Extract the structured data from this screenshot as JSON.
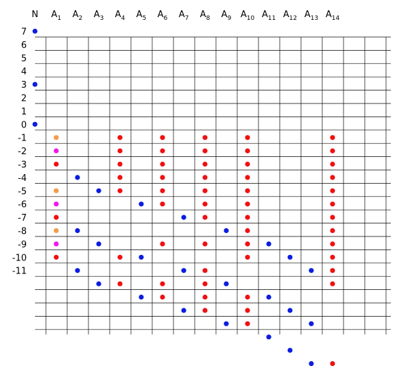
{
  "header": "N",
  "columns": [
    {
      "base": "A",
      "sub": "1"
    },
    {
      "base": "A",
      "sub": "2"
    },
    {
      "base": "A",
      "sub": "3"
    },
    {
      "base": "A",
      "sub": "4"
    },
    {
      "base": "A",
      "sub": "5"
    },
    {
      "base": "A",
      "sub": "6"
    },
    {
      "base": "A",
      "sub": "7"
    },
    {
      "base": "A",
      "sub": "8"
    },
    {
      "base": "A",
      "sub": "9"
    },
    {
      "base": "A",
      "sub": "10"
    },
    {
      "base": "A",
      "sub": "11"
    },
    {
      "base": "A",
      "sub": "12"
    },
    {
      "base": "A",
      "sub": "13"
    },
    {
      "base": "A",
      "sub": "14"
    }
  ],
  "row_labels": [
    "7",
    "6",
    "5",
    "4",
    "3",
    "2",
    "1",
    "0",
    "-1",
    "-2",
    "-3",
    "-4",
    "-5",
    "-6",
    "-7",
    "-8",
    "-9",
    "-10",
    "-11"
  ],
  "colors": {
    "blue": "#0b1de0",
    "red": "#f01010",
    "orange": "#f59a4a",
    "magenta": "#f018ee"
  },
  "dots": [
    {
      "col": 0,
      "row": 7,
      "color": "blue"
    },
    {
      "col": 0,
      "row": 3,
      "color": "blue"
    },
    {
      "col": 0,
      "row": 0,
      "color": "blue"
    },
    {
      "col": 1,
      "row": -1,
      "color": "orange"
    },
    {
      "col": 1,
      "row": -2,
      "color": "magenta"
    },
    {
      "col": 1,
      "row": -3,
      "color": "red"
    },
    {
      "col": 1,
      "row": -5,
      "color": "orange"
    },
    {
      "col": 1,
      "row": -6,
      "color": "magenta"
    },
    {
      "col": 1,
      "row": -7,
      "color": "red"
    },
    {
      "col": 1,
      "row": -8,
      "color": "orange"
    },
    {
      "col": 1,
      "row": -9,
      "color": "magenta"
    },
    {
      "col": 1,
      "row": -10,
      "color": "red"
    },
    {
      "col": 2,
      "row": -4,
      "color": "blue"
    },
    {
      "col": 2,
      "row": -8,
      "color": "blue"
    },
    {
      "col": 2,
      "row": -11,
      "color": "blue"
    },
    {
      "col": 3,
      "row": -5,
      "color": "blue"
    },
    {
      "col": 3,
      "row": -9,
      "color": "blue"
    },
    {
      "col": 3,
      "row": -12,
      "color": "blue"
    },
    {
      "col": 4,
      "row": -1,
      "color": "red"
    },
    {
      "col": 4,
      "row": -2,
      "color": "red"
    },
    {
      "col": 4,
      "row": -3,
      "color": "red"
    },
    {
      "col": 4,
      "row": -4,
      "color": "red"
    },
    {
      "col": 4,
      "row": -5,
      "color": "red"
    },
    {
      "col": 4,
      "row": -10,
      "color": "red"
    },
    {
      "col": 4,
      "row": -12,
      "color": "red"
    },
    {
      "col": 5,
      "row": -6,
      "color": "blue"
    },
    {
      "col": 5,
      "row": -10,
      "color": "blue"
    },
    {
      "col": 5,
      "row": -13,
      "color": "blue"
    },
    {
      "col": 6,
      "row": -1,
      "color": "red"
    },
    {
      "col": 6,
      "row": -2,
      "color": "red"
    },
    {
      "col": 6,
      "row": -3,
      "color": "red"
    },
    {
      "col": 6,
      "row": -4,
      "color": "red"
    },
    {
      "col": 6,
      "row": -5,
      "color": "red"
    },
    {
      "col": 6,
      "row": -6,
      "color": "red"
    },
    {
      "col": 6,
      "row": -9,
      "color": "red"
    },
    {
      "col": 6,
      "row": -12,
      "color": "red"
    },
    {
      "col": 6,
      "row": -13,
      "color": "red"
    },
    {
      "col": 7,
      "row": -7,
      "color": "blue"
    },
    {
      "col": 7,
      "row": -11,
      "color": "blue"
    },
    {
      "col": 7,
      "row": -14,
      "color": "blue"
    },
    {
      "col": 8,
      "row": -1,
      "color": "red"
    },
    {
      "col": 8,
      "row": -2,
      "color": "red"
    },
    {
      "col": 8,
      "row": -3,
      "color": "red"
    },
    {
      "col": 8,
      "row": -4,
      "color": "red"
    },
    {
      "col": 8,
      "row": -5,
      "color": "red"
    },
    {
      "col": 8,
      "row": -6,
      "color": "red"
    },
    {
      "col": 8,
      "row": -7,
      "color": "red"
    },
    {
      "col": 8,
      "row": -9,
      "color": "red"
    },
    {
      "col": 8,
      "row": -11,
      "color": "red"
    },
    {
      "col": 8,
      "row": -12,
      "color": "red"
    },
    {
      "col": 8,
      "row": -13,
      "color": "red"
    },
    {
      "col": 8,
      "row": -14,
      "color": "red"
    },
    {
      "col": 9,
      "row": -8,
      "color": "blue"
    },
    {
      "col": 9,
      "row": -12,
      "color": "blue"
    },
    {
      "col": 9,
      "row": -15,
      "color": "blue"
    },
    {
      "col": 10,
      "row": -1,
      "color": "red"
    },
    {
      "col": 10,
      "row": -2,
      "color": "red"
    },
    {
      "col": 10,
      "row": -3,
      "color": "red"
    },
    {
      "col": 10,
      "row": -4,
      "color": "red"
    },
    {
      "col": 10,
      "row": -5,
      "color": "red"
    },
    {
      "col": 10,
      "row": -6,
      "color": "red"
    },
    {
      "col": 10,
      "row": -7,
      "color": "red"
    },
    {
      "col": 10,
      "row": -8,
      "color": "red"
    },
    {
      "col": 10,
      "row": -9,
      "color": "red"
    },
    {
      "col": 10,
      "row": -10,
      "color": "red"
    },
    {
      "col": 10,
      "row": -13,
      "color": "red"
    },
    {
      "col": 10,
      "row": -14,
      "color": "red"
    },
    {
      "col": 10,
      "row": -15,
      "color": "red"
    },
    {
      "col": 11,
      "row": -9,
      "color": "blue"
    },
    {
      "col": 11,
      "row": -13,
      "color": "blue"
    },
    {
      "col": 11,
      "row": -16,
      "color": "blue"
    },
    {
      "col": 12,
      "row": -10,
      "color": "blue"
    },
    {
      "col": 12,
      "row": -14,
      "color": "blue"
    },
    {
      "col": 12,
      "row": -17,
      "color": "blue"
    },
    {
      "col": 13,
      "row": -11,
      "color": "blue"
    },
    {
      "col": 13,
      "row": -15,
      "color": "blue"
    },
    {
      "col": 13,
      "row": -18,
      "color": "blue"
    },
    {
      "col": 14,
      "row": -1,
      "color": "red"
    },
    {
      "col": 14,
      "row": -2,
      "color": "red"
    },
    {
      "col": 14,
      "row": -3,
      "color": "red"
    },
    {
      "col": 14,
      "row": -4,
      "color": "red"
    },
    {
      "col": 14,
      "row": -5,
      "color": "red"
    },
    {
      "col": 14,
      "row": -6,
      "color": "red"
    },
    {
      "col": 14,
      "row": -7,
      "color": "red"
    },
    {
      "col": 14,
      "row": -8,
      "color": "red"
    },
    {
      "col": 14,
      "row": -9,
      "color": "red"
    },
    {
      "col": 14,
      "row": -10,
      "color": "red"
    },
    {
      "col": 14,
      "row": -11,
      "color": "red"
    },
    {
      "col": 14,
      "row": -12,
      "color": "red"
    },
    {
      "col": 14,
      "row": -18,
      "color": "red"
    }
  ]
}
